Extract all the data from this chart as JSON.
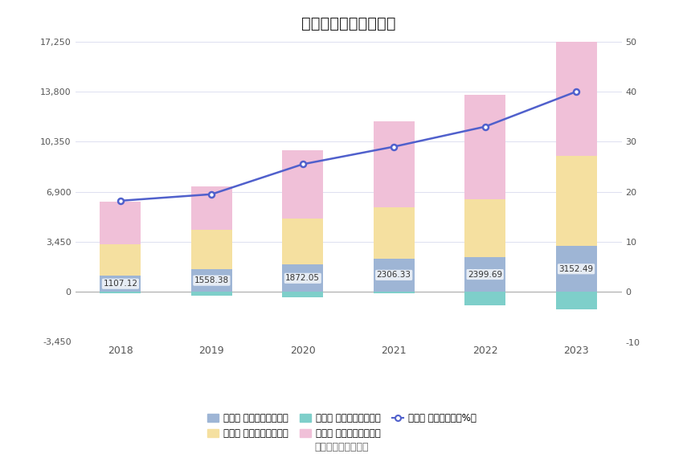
{
  "years": [
    2018,
    2019,
    2020,
    2021,
    2022,
    2023
  ],
  "sales_fees": [
    1107.12,
    1558.38,
    1872.05,
    2306.33,
    2399.69,
    3152.49
  ],
  "mgmt_fees": [
    2150,
    2700,
    3200,
    3500,
    4000,
    6200
  ],
  "finance_fees": [
    -120,
    -250,
    -350,
    -80,
    -950,
    -1200
  ],
  "rd_fees": [
    2950,
    3000,
    4700,
    5950,
    7200,
    8800
  ],
  "period_rate": [
    18.2,
    19.5,
    25.5,
    29.0,
    33.0,
    40.0
  ],
  "bar_width": 0.45,
  "sales_color": "#9eb5d5",
  "mgmt_color": "#f5e0a0",
  "finance_color": "#7ecfca",
  "rd_color": "#f0c0d8",
  "line_color": "#5060cc",
  "title": "历年期间费用变化情况",
  "title_fontsize": 14,
  "left_ylim": [
    -3450,
    17250
  ],
  "left_yticks": [
    -3450,
    0,
    3450,
    6900,
    10350,
    13800,
    17250
  ],
  "right_ylim": [
    -10,
    50
  ],
  "right_yticks": [
    -10,
    0,
    10,
    20,
    30,
    40,
    50
  ],
  "source_text": "数据来源：恒生聚源",
  "legend_labels": [
    "左轴： 销售费用（万元）",
    "左轴： 管理费用（万元）",
    "左轴： 财务费用（万元）",
    "左轴： 研发费用（万元）",
    "右轴： 期间费用率（%）"
  ],
  "bg_color": "#ffffff",
  "grid_color": "#dde0f0"
}
